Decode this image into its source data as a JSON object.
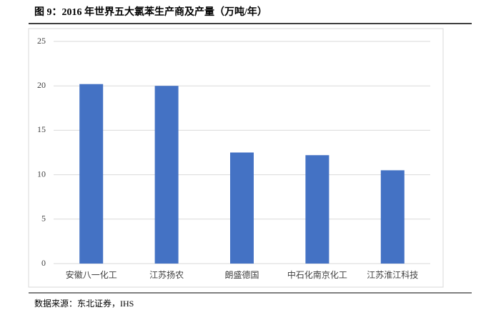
{
  "chart_data": {
    "type": "bar",
    "title": "图 9：2016 年世界五大氯苯生产商及产量（万吨/年）",
    "categories": [
      "安徽八一化工",
      "江苏扬农",
      "朗盛德国",
      "中石化南京化工",
      "江苏淮江科技"
    ],
    "values": [
      20.2,
      20,
      12.5,
      12.2,
      10.5
    ],
    "color": "#4472c4",
    "ylim": [
      0,
      25
    ],
    "yticks": [
      0,
      5,
      10,
      15,
      20,
      25
    ],
    "grid": true,
    "source": "数据来源：东北证券，IHS"
  }
}
